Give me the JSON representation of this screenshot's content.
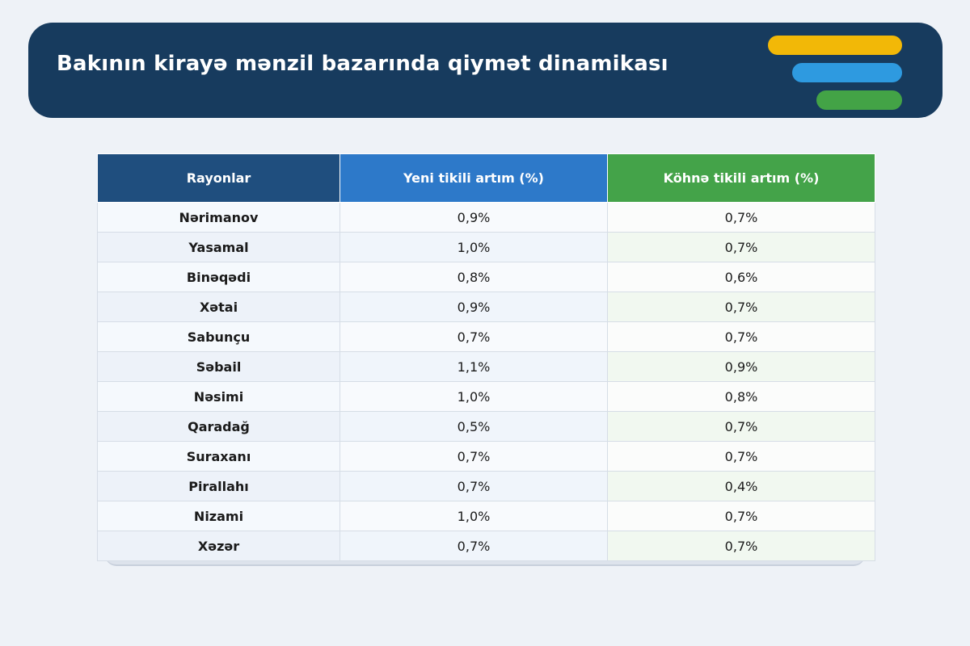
{
  "title": "Bakının kirayə mənzil bazarında qiymət dinamikası",
  "colors": {
    "header_bg": "#173b5e",
    "accent_yellow": "#f2b807",
    "accent_blue": "#2e9ae0",
    "accent_green": "#43a346",
    "col1_header": "#1f4e7e",
    "col2_header": "#2d79c9",
    "col3_header": "#44a349"
  },
  "chart_data": {
    "type": "table",
    "columns": [
      "Rayonlar",
      "Yeni tikili artım (%)",
      "Köhnə tikili artım (%)"
    ],
    "rows": [
      [
        "Nərimanov",
        "0,9%",
        "0,7%"
      ],
      [
        "Yasamal",
        "1,0%",
        "0,7%"
      ],
      [
        "Binəqədi",
        "0,8%",
        "0,6%"
      ],
      [
        "Xətai",
        "0,9%",
        "0,7%"
      ],
      [
        "Sabunçu",
        "0,7%",
        "0,7%"
      ],
      [
        "Səbail",
        "1,1%",
        "0,9%"
      ],
      [
        "Nəsimi",
        "1,0%",
        "0,8%"
      ],
      [
        "Qaradağ",
        "0,5%",
        "0,7%"
      ],
      [
        "Suraxanı",
        "0,7%",
        "0,7%"
      ],
      [
        "Pirallahı",
        "0,7%",
        "0,4%"
      ],
      [
        "Nizami",
        "1,0%",
        "0,7%"
      ],
      [
        "Xəzər",
        "0,7%",
        "0,7%"
      ]
    ]
  }
}
